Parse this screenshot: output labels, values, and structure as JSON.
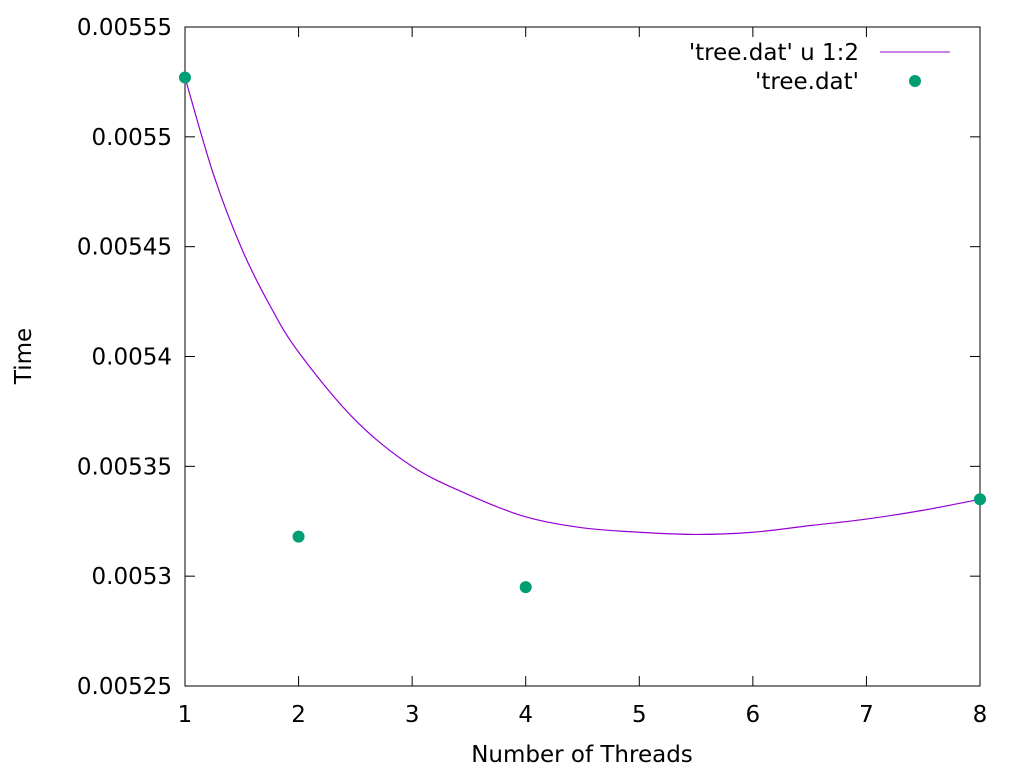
{
  "chart_data": {
    "type": "scatter",
    "title": "",
    "xlabel": "Number of Threads",
    "ylabel": "Time",
    "xlim": [
      1,
      8
    ],
    "ylim": [
      0.00525,
      0.00555
    ],
    "xticks": [
      "1",
      "2",
      "3",
      "4",
      "5",
      "6",
      "7",
      "8"
    ],
    "yticks": [
      "0.00525",
      "0.0053",
      "0.00535",
      "0.0054",
      "0.00545",
      "0.0055",
      "0.00555"
    ],
    "grid": false,
    "legend_position": "top-right",
    "series": [
      {
        "name": "'tree.dat' u 1:2",
        "kind": "line",
        "color": "#9400d3",
        "x": [
          1,
          1.25,
          1.5,
          1.75,
          2,
          2.5,
          3,
          3.5,
          4,
          4.5,
          5,
          5.5,
          6,
          6.5,
          7,
          7.5,
          8
        ],
        "y": [
          0.005527,
          0.005483,
          0.005449,
          0.005423,
          0.005402,
          0.005371,
          0.00535,
          0.005337,
          0.005327,
          0.005322,
          0.00532,
          0.005319,
          0.00532,
          0.005323,
          0.005326,
          0.00533,
          0.005335
        ]
      },
      {
        "name": "'tree.dat'",
        "kind": "points",
        "color": "#009e73",
        "x": [
          1,
          2,
          4,
          8
        ],
        "y": [
          0.005527,
          0.005318,
          0.005295,
          0.005335
        ]
      }
    ]
  }
}
